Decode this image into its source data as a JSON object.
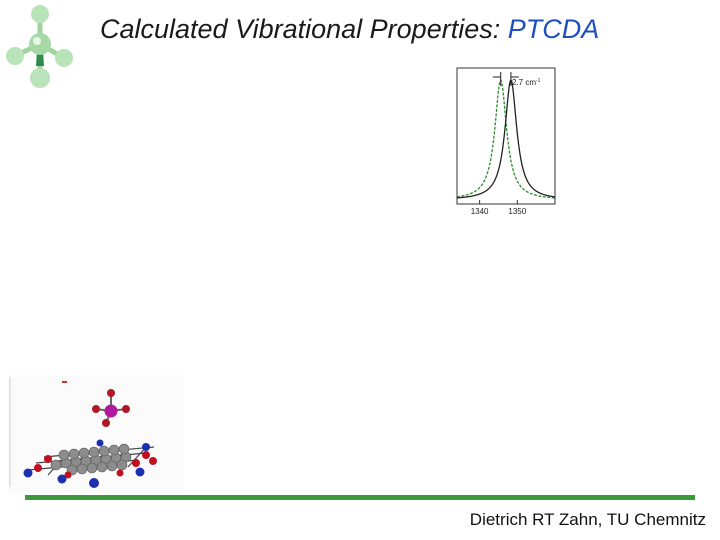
{
  "slide": {
    "title_prefix": "Calculated Vibrational Properties: ",
    "title_highlight": "PTCDA",
    "footer": "Dietrich RT Zahn, TU Chemnitz"
  },
  "chart_data": {
    "type": "line",
    "xlim": [
      1334,
      1360
    ],
    "ylim": [
      0,
      1
    ],
    "xticks": [
      1340,
      1350
    ],
    "annotation": "2.7 cm",
    "annotation_superscript": "-1",
    "series": [
      {
        "color": "#2e8b2e",
        "style": "dashed",
        "peak": 1345.6,
        "hwhm": 1.9
      },
      {
        "color": "#222222",
        "style": "solid",
        "peak": 1348.3,
        "hwhm": 1.9
      }
    ],
    "grid": false
  },
  "colors": {
    "accent": "#1f4fbf",
    "footer_line": "#3b9a3b"
  },
  "icons": {
    "logo": "molecule-logo-icon",
    "figure": "ptcda-adsorption-model"
  }
}
